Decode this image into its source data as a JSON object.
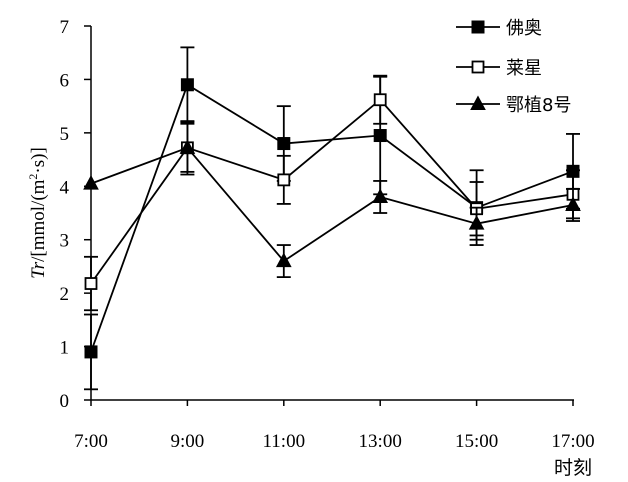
{
  "chart_data": {
    "type": "line",
    "categories": [
      "7:00",
      "9:00",
      "11:00",
      "13:00",
      "15:00",
      "17:00"
    ],
    "xlabel": "时刻",
    "ylabel_parts": {
      "var": "Tr",
      "unit_prefix": "/[mmol/(m",
      "sup": "2",
      "unit_suffix": "·s)]"
    },
    "ylim": [
      0,
      7
    ],
    "yticks": [
      0,
      1,
      2,
      3,
      4,
      5,
      6,
      7
    ],
    "grid": false,
    "legend_position": "top-right",
    "series": [
      {
        "name": "佛奥",
        "marker": "filled-square",
        "values": [
          0.9,
          5.9,
          4.8,
          4.95,
          3.6,
          4.28
        ],
        "errors": [
          0.7,
          0.7,
          0.7,
          1.1,
          0.7,
          0.7
        ]
      },
      {
        "name": "莱星",
        "marker": "open-square",
        "values": [
          2.18,
          4.72,
          4.12,
          5.62,
          3.58,
          3.85
        ],
        "errors": [
          0.5,
          0.45,
          0.45,
          0.45,
          0.5,
          0.45
        ]
      },
      {
        "name": "鄂植8号",
        "marker": "filled-triangle",
        "values": [
          4.05,
          4.72,
          2.6,
          3.8,
          3.3,
          3.65
        ],
        "errors": [
          0.0,
          0.5,
          0.3,
          0.3,
          0.3,
          0.3
        ]
      }
    ]
  },
  "colors": {
    "ink": "#000000",
    "background": "#ffffff"
  }
}
